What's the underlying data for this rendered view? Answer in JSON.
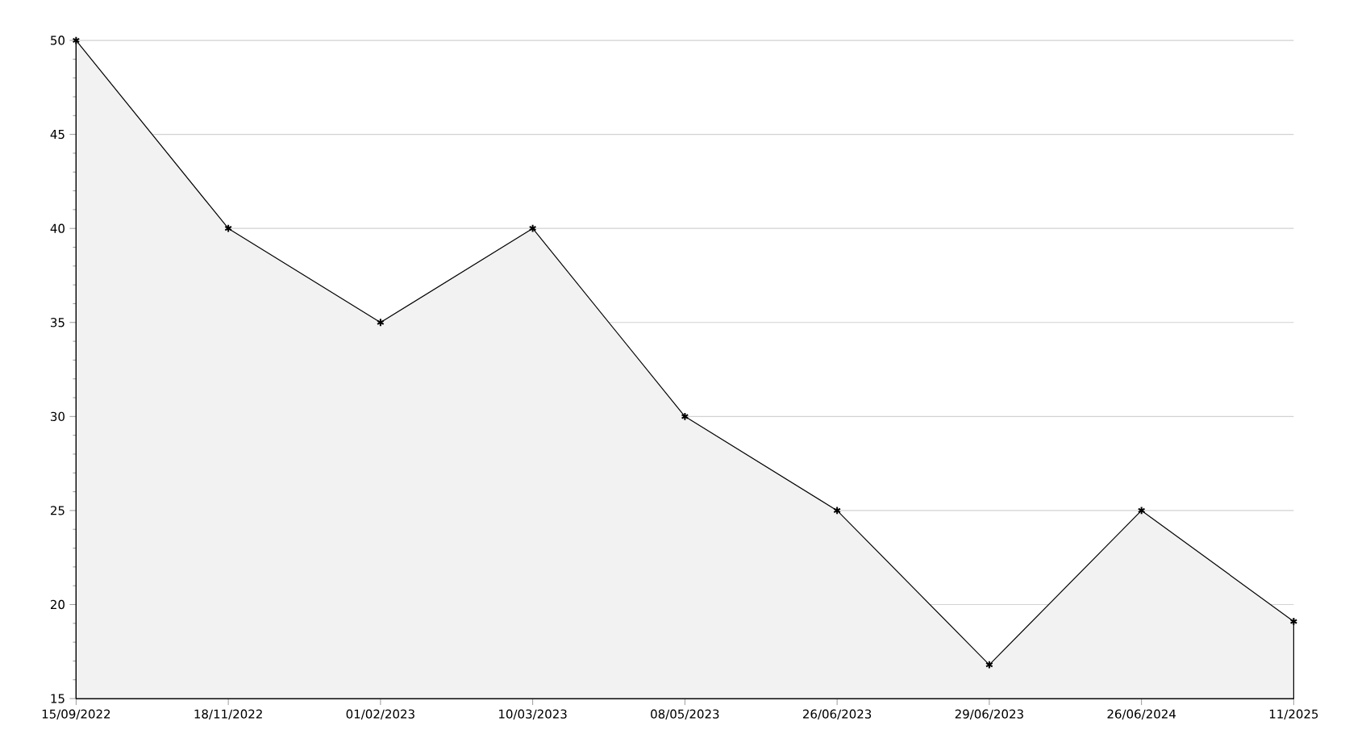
{
  "chart_data": {
    "type": "area",
    "categories": [
      "15/09/2022",
      "18/11/2022",
      "01/02/2023",
      "10/03/2023",
      "08/05/2023",
      "26/06/2023",
      "29/06/2023",
      "26/06/2024",
      "11/2025"
    ],
    "series": [
      {
        "color": "#000000",
        "values": [
          50,
          40,
          35,
          40,
          30,
          25,
          16.8,
          25,
          19.1
        ]
      }
    ],
    "ylim": [
      15,
      50
    ],
    "yticks": [
      15,
      20,
      25,
      30,
      35,
      40,
      45,
      50
    ],
    "grid": "y",
    "marker": "cross",
    "line_style": "solid"
  }
}
